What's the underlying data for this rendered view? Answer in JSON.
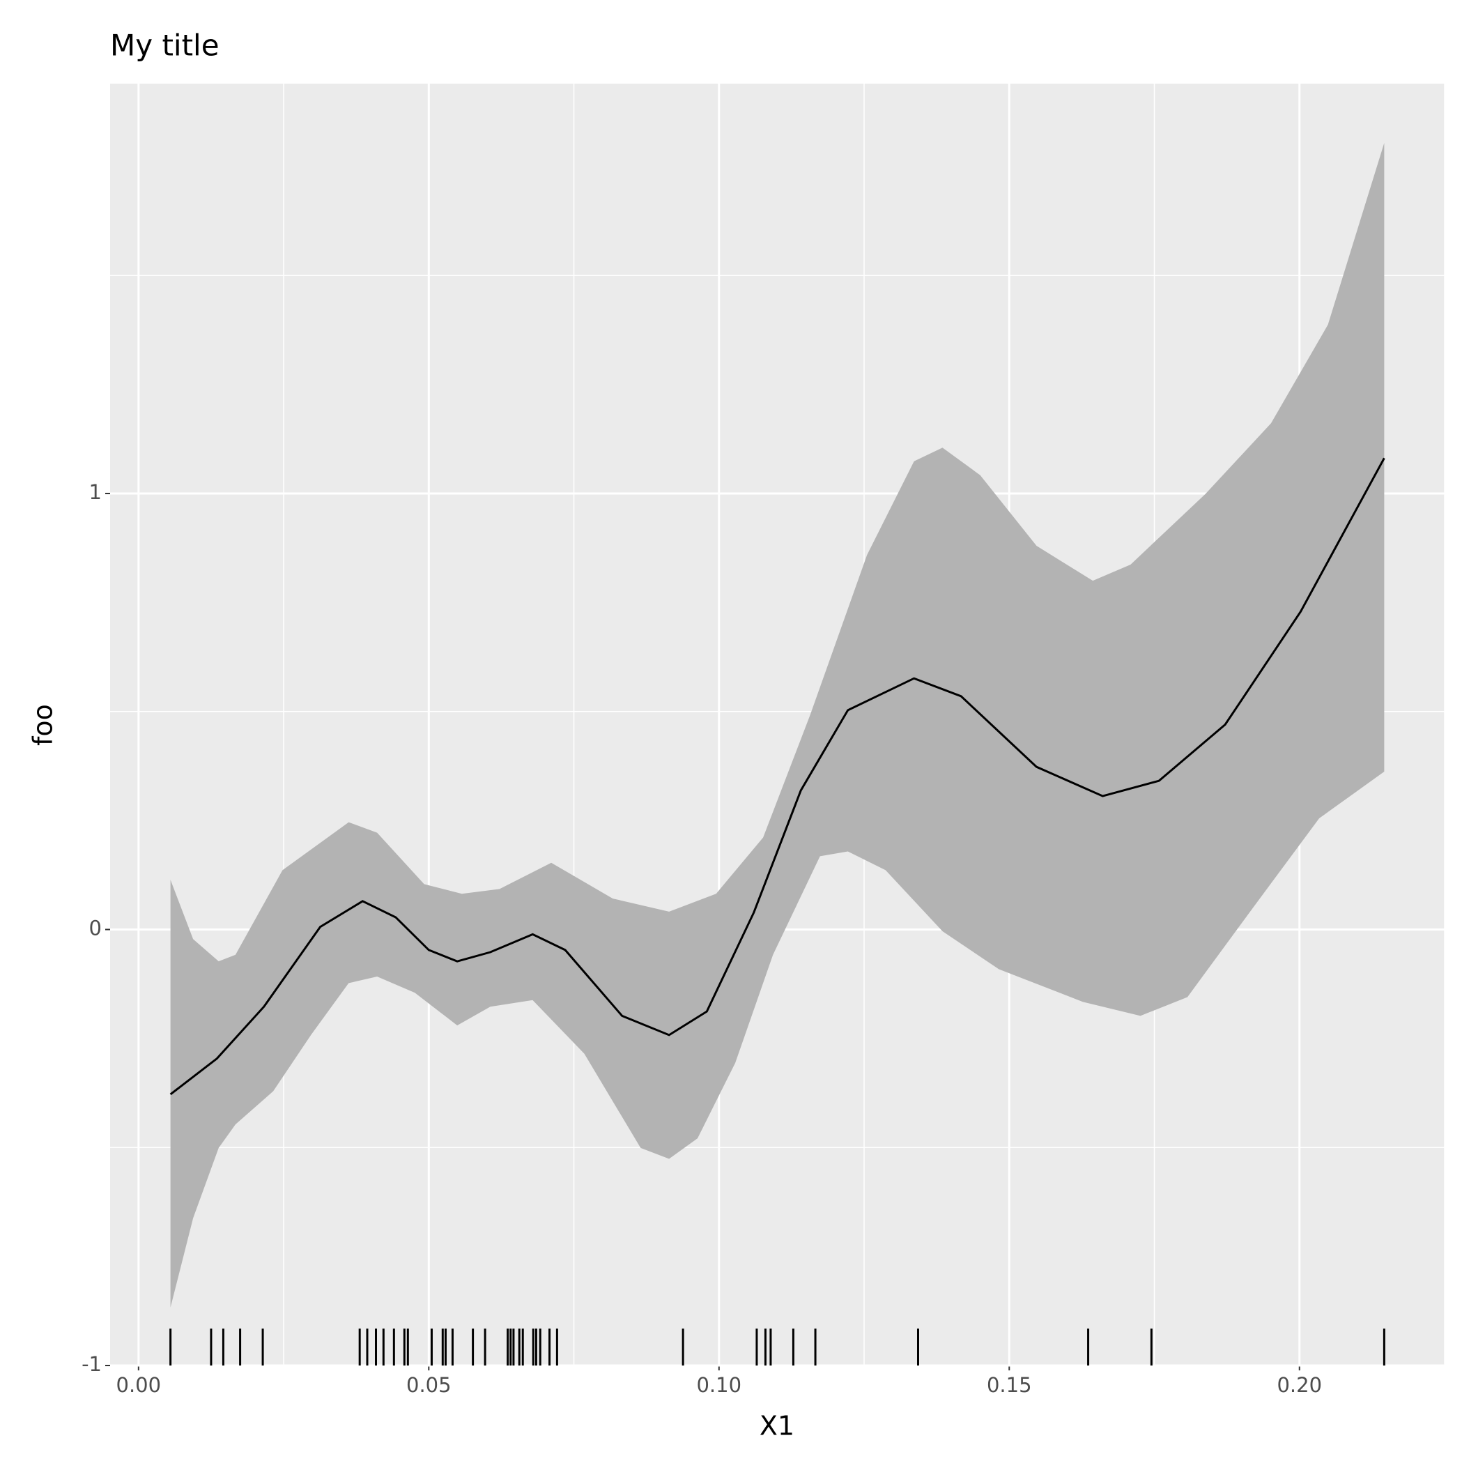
{
  "chart_data": {
    "type": "line",
    "title": "My title",
    "xlabel": "X1",
    "ylabel": "foo",
    "xlim": [
      -0.0049,
      0.225
    ],
    "ylim": [
      -1.0,
      1.94
    ],
    "xticks": [
      {
        "value": 0,
        "label": "0.00"
      },
      {
        "value": 0.05,
        "label": "0.05"
      },
      {
        "value": 0.1,
        "label": "0.10"
      },
      {
        "value": 0.15,
        "label": "0.15"
      },
      {
        "value": 0.2,
        "label": "0.20"
      }
    ],
    "yticks": [
      -1,
      0,
      1
    ],
    "grid": true,
    "color": "#000000",
    "ribbon_color": "#b3b3b3",
    "fit": {
      "x": [
        0.0055,
        0.0135,
        0.0216,
        0.0313,
        0.0386,
        0.0443,
        0.05,
        0.0549,
        0.0606,
        0.0679,
        0.0735,
        0.0833,
        0.0914,
        0.0979,
        0.106,
        0.1141,
        0.1222,
        0.1336,
        0.1417,
        0.1547,
        0.1661,
        0.1758,
        0.1872,
        0.2002,
        0.2146
      ],
      "values": [
        -0.378,
        -0.296,
        -0.177,
        0.006,
        0.065,
        0.028,
        -0.047,
        -0.073,
        -0.052,
        -0.011,
        -0.047,
        -0.198,
        -0.242,
        -0.188,
        0.039,
        0.319,
        0.503,
        0.576,
        0.535,
        0.373,
        0.306,
        0.341,
        0.47,
        0.729,
        1.081
      ]
    },
    "upper": {
      "x": [
        0.0055,
        0.0094,
        0.0138,
        0.0167,
        0.0248,
        0.0362,
        0.0411,
        0.0492,
        0.0557,
        0.0622,
        0.0711,
        0.0817,
        0.0914,
        0.0995,
        0.1076,
        0.1157,
        0.1255,
        0.1336,
        0.1385,
        0.145,
        0.1547,
        0.1644,
        0.1709,
        0.1838,
        0.1951,
        0.2049,
        0.2146
      ],
      "values": [
        0.114,
        -0.022,
        -0.073,
        -0.058,
        0.136,
        0.246,
        0.222,
        0.104,
        0.082,
        0.093,
        0.153,
        0.071,
        0.041,
        0.082,
        0.211,
        0.492,
        0.859,
        1.074,
        1.105,
        1.042,
        0.88,
        0.8,
        0.837,
        0.999,
        1.161,
        1.387,
        1.804
      ]
    },
    "lower": {
      "x": [
        0.0055,
        0.0094,
        0.0138,
        0.0167,
        0.0232,
        0.0297,
        0.0362,
        0.0411,
        0.0476,
        0.0549,
        0.0606,
        0.0679,
        0.0768,
        0.0865,
        0.0914,
        0.0963,
        0.1028,
        0.1093,
        0.1174,
        0.1222,
        0.1287,
        0.1385,
        0.1482,
        0.1627,
        0.1726,
        0.1807,
        0.192,
        0.2034,
        0.2146
      ],
      "values": [
        -0.867,
        -0.662,
        -0.501,
        -0.447,
        -0.371,
        -0.242,
        -0.123,
        -0.108,
        -0.145,
        -0.22,
        -0.177,
        -0.162,
        -0.285,
        -0.501,
        -0.526,
        -0.479,
        -0.306,
        -0.058,
        0.168,
        0.179,
        0.136,
        -0.004,
        -0.091,
        -0.166,
        -0.198,
        -0.155,
        0.05,
        0.255,
        0.362
      ]
    },
    "rug": [
      0.0055,
      0.0125,
      0.0146,
      0.0175,
      0.0214,
      0.0381,
      0.0394,
      0.0409,
      0.0422,
      0.044,
      0.0458,
      0.0464,
      0.0505,
      0.0524,
      0.0529,
      0.0541,
      0.0576,
      0.0597,
      0.0636,
      0.0641,
      0.0646,
      0.0656,
      0.0662,
      0.068,
      0.0685,
      0.0692,
      0.0708,
      0.0721,
      0.0938,
      0.1065,
      0.108,
      0.1089,
      0.1128,
      0.1166,
      0.1343,
      0.1636,
      0.1745,
      0.2146
    ]
  }
}
